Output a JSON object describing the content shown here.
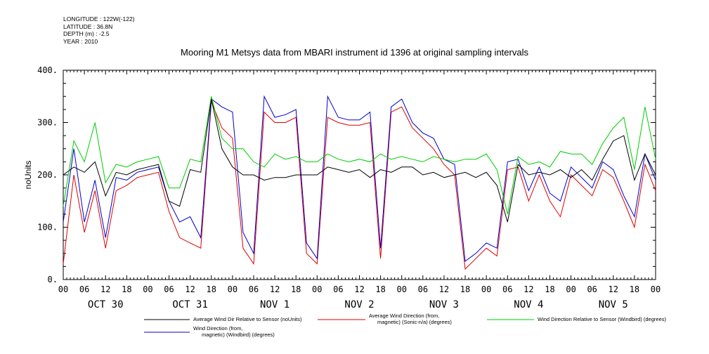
{
  "meta": {
    "longitude": "LONGITUDE : 122W(-122)",
    "latitude": "LATITUDE : 36.8N",
    "depth": "DEPTH (m) : -2.5",
    "year": "YEAR : 2010"
  },
  "chart_data": {
    "type": "line",
    "title": "Mooring M1 Metsys data from MBARI instrument id 1396 at original sampling intervals",
    "ylabel": "noUnits",
    "ylim": [
      0,
      400
    ],
    "yticks": [
      0,
      100,
      200,
      300,
      400
    ],
    "xlim_hours": [
      0,
      168
    ],
    "hour_tick_labels": [
      "00",
      "06",
      "12",
      "18",
      "00",
      "06",
      "12",
      "18",
      "00",
      "06",
      "12",
      "18",
      "00",
      "06",
      "12",
      "18",
      "00",
      "06",
      "12",
      "18",
      "00",
      "06",
      "12",
      "18",
      "00",
      "06",
      "12",
      "18",
      "00"
    ],
    "day_labels": [
      "OCT 30",
      "OCT 31",
      "NOV  1",
      "NOV  2",
      "NOV  3",
      "NOV  4",
      "NOV  5"
    ],
    "grid": false,
    "legend_position": "bottom",
    "x": [
      0,
      3,
      6,
      9,
      12,
      15,
      18,
      21,
      24,
      27,
      30,
      33,
      36,
      39,
      42,
      45,
      48,
      51,
      54,
      57,
      60,
      63,
      66,
      69,
      72,
      75,
      78,
      81,
      84,
      87,
      90,
      93,
      96,
      99,
      102,
      105,
      108,
      111,
      114,
      117,
      120,
      123,
      126,
      129,
      132,
      135,
      138,
      141,
      144,
      147,
      150,
      153,
      156,
      159,
      162,
      165,
      168
    ],
    "series": [
      {
        "name": "Average Wind Dir Relative to Sensor (noUnits)",
        "color": "#000000",
        "values": [
          200,
          215,
          205,
          225,
          160,
          205,
          200,
          210,
          215,
          220,
          150,
          140,
          210,
          205,
          345,
          250,
          215,
          200,
          200,
          190,
          195,
          195,
          200,
          200,
          200,
          215,
          210,
          205,
          210,
          195,
          210,
          205,
          215,
          215,
          200,
          205,
          195,
          200,
          205,
          195,
          205,
          180,
          110,
          220,
          200,
          205,
          200,
          210,
          195,
          210,
          190,
          230,
          265,
          275,
          190,
          240,
          200
        ]
      },
      {
        "name": "Average Wind Direction (from, magnetic) (Sonic-n/a) (degrees)",
        "color": "#dd0000",
        "values": [
          30,
          200,
          90,
          170,
          60,
          170,
          180,
          195,
          200,
          205,
          130,
          80,
          70,
          60,
          340,
          290,
          270,
          60,
          30,
          320,
          300,
          300,
          310,
          50,
          30,
          310,
          300,
          295,
          295,
          300,
          40,
          320,
          330,
          290,
          270,
          250,
          220,
          200,
          20,
          40,
          60,
          45,
          210,
          215,
          150,
          200,
          150,
          120,
          200,
          180,
          160,
          210,
          195,
          150,
          100,
          220,
          170
        ]
      },
      {
        "name": "Wind Direction Relative to Sensor (Windbird) (degrees)",
        "color": "#00cc00",
        "values": [
          140,
          265,
          225,
          300,
          185,
          220,
          215,
          225,
          230,
          235,
          175,
          175,
          230,
          225,
          350,
          270,
          250,
          250,
          225,
          215,
          240,
          230,
          235,
          225,
          225,
          240,
          230,
          225,
          230,
          225,
          240,
          230,
          235,
          230,
          225,
          235,
          230,
          225,
          230,
          230,
          240,
          210,
          125,
          235,
          220,
          225,
          215,
          245,
          240,
          240,
          220,
          260,
          290,
          310,
          210,
          330,
          230
        ]
      },
      {
        "name": "Wind Direction (from, magnetic) (Windbird) (degrees)",
        "color": "#0000cc",
        "values": [
          110,
          250,
          110,
          190,
          80,
          195,
          190,
          205,
          210,
          215,
          150,
          110,
          120,
          80,
          345,
          330,
          320,
          90,
          50,
          350,
          310,
          315,
          325,
          70,
          40,
          350,
          310,
          305,
          305,
          320,
          60,
          330,
          345,
          300,
          280,
          270,
          230,
          220,
          35,
          50,
          70,
          60,
          225,
          230,
          170,
          215,
          165,
          150,
          215,
          195,
          175,
          225,
          210,
          160,
          120,
          240,
          190
        ]
      }
    ]
  }
}
